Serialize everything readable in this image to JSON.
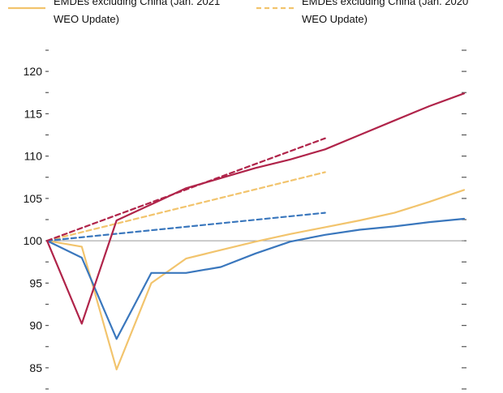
{
  "chart_data": {
    "type": "line",
    "title": "",
    "xlabel": "",
    "ylabel": "",
    "x": [
      0,
      1,
      2,
      3,
      4,
      5,
      6,
      7,
      8,
      9,
      10,
      11,
      12
    ],
    "ylim": [
      82.5,
      122.5
    ],
    "yticks": [
      85,
      90,
      95,
      100,
      105,
      110,
      115,
      120
    ],
    "ytick_labels": [
      "85",
      "90",
      "95",
      "100",
      "105",
      "110",
      "115",
      "120"
    ],
    "grid": false,
    "legend": {
      "placement": "top",
      "entries": [
        {
          "label_line1": "EMDEs excluding China (Jan. 2021",
          "label_line2": "WEO Update)",
          "color": "#f2c46d",
          "dash": "solid"
        },
        {
          "label_line1": "EMDEs excluding China (Jan. 2020",
          "label_line2": "WEO Update)",
          "color": "#f2c46d",
          "dash": "dashed"
        }
      ]
    },
    "series": [
      {
        "color": "#f2c46d",
        "dash": "solid",
        "x": [
          0,
          1,
          2,
          3,
          4,
          5,
          6,
          7,
          8,
          9,
          10,
          11,
          12
        ],
        "values": [
          100.0,
          99.3,
          84.8,
          95.0,
          97.9,
          98.9,
          99.9,
          100.8,
          101.6,
          102.4,
          103.3,
          104.6,
          106.0
        ]
      },
      {
        "color": "#f2c46d",
        "dash": "dashed",
        "x": [
          0,
          8
        ],
        "values": [
          100.0,
          108.1
        ]
      },
      {
        "color": "#3a77bd",
        "dash": "solid",
        "x": [
          0,
          1,
          2,
          3,
          4,
          5,
          6,
          7,
          8,
          9,
          10,
          11,
          12
        ],
        "values": [
          100.0,
          98.0,
          88.4,
          96.2,
          96.2,
          96.9,
          98.5,
          99.9,
          100.7,
          101.3,
          101.7,
          102.2,
          102.6
        ]
      },
      {
        "color": "#3a77bd",
        "dash": "dashed",
        "x": [
          0,
          8
        ],
        "values": [
          100.0,
          103.3
        ]
      },
      {
        "color": "#b0244a",
        "dash": "solid",
        "x": [
          0,
          1,
          2,
          3,
          4,
          5,
          6,
          7,
          8,
          9,
          10,
          11,
          12
        ],
        "values": [
          100.0,
          90.2,
          102.4,
          104.3,
          106.2,
          107.4,
          108.6,
          109.6,
          110.8,
          112.5,
          114.2,
          115.9,
          117.4
        ]
      },
      {
        "color": "#b0244a",
        "dash": "dashed",
        "x": [
          0,
          8
        ],
        "values": [
          100.0,
          112.1
        ]
      }
    ],
    "reference_line": {
      "y": 100,
      "color": "#999999"
    },
    "axis_color": "#555555"
  }
}
